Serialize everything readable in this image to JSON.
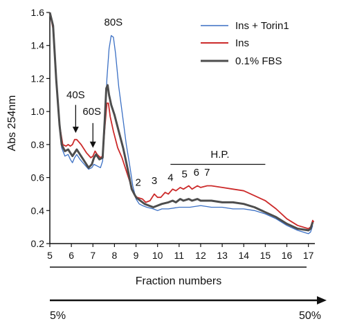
{
  "chart_data": {
    "type": "line",
    "ylabel": "Abs 254nm",
    "xlabel": "Fraction numbers",
    "xlim": [
      5,
      17.3
    ],
    "ylim": [
      0.2,
      1.6
    ],
    "x_ticks": [
      "5",
      "6",
      "7",
      "8",
      "9",
      "10",
      "11",
      "12",
      "13",
      "14",
      "15",
      "16",
      "17"
    ],
    "y_ticks": [
      "0.2",
      "0.4",
      "0.6",
      "0.8",
      "1.0",
      "1.2",
      "1.4",
      "1.6"
    ],
    "legend_position": "top-right",
    "series": [
      {
        "name": "Ins + Torin1",
        "color": "#3a6fc4",
        "points": [
          [
            5.0,
            1.6
          ],
          [
            5.15,
            1.52
          ],
          [
            5.3,
            1.2
          ],
          [
            5.45,
            0.9
          ],
          [
            5.55,
            0.78
          ],
          [
            5.7,
            0.73
          ],
          [
            5.85,
            0.74
          ],
          [
            5.95,
            0.71
          ],
          [
            6.05,
            0.69
          ],
          [
            6.15,
            0.72
          ],
          [
            6.25,
            0.74
          ],
          [
            6.4,
            0.71
          ],
          [
            6.6,
            0.68
          ],
          [
            6.8,
            0.65
          ],
          [
            6.95,
            0.66
          ],
          [
            7.05,
            0.68
          ],
          [
            7.2,
            0.67
          ],
          [
            7.35,
            0.66
          ],
          [
            7.45,
            0.7
          ],
          [
            7.55,
            0.9
          ],
          [
            7.65,
            1.2
          ],
          [
            7.75,
            1.38
          ],
          [
            7.85,
            1.46
          ],
          [
            7.95,
            1.45
          ],
          [
            8.05,
            1.35
          ],
          [
            8.2,
            1.15
          ],
          [
            8.4,
            0.95
          ],
          [
            8.55,
            0.8
          ],
          [
            8.7,
            0.68
          ],
          [
            8.85,
            0.55
          ],
          [
            9.0,
            0.47
          ],
          [
            9.15,
            0.44
          ],
          [
            9.3,
            0.43
          ],
          [
            9.5,
            0.42
          ],
          [
            9.8,
            0.41
          ],
          [
            10.0,
            0.4
          ],
          [
            10.2,
            0.41
          ],
          [
            10.5,
            0.41
          ],
          [
            11.0,
            0.42
          ],
          [
            11.5,
            0.42
          ],
          [
            12.0,
            0.43
          ],
          [
            12.5,
            0.42
          ],
          [
            13.0,
            0.42
          ],
          [
            13.5,
            0.41
          ],
          [
            14.0,
            0.41
          ],
          [
            14.5,
            0.4
          ],
          [
            15.0,
            0.38
          ],
          [
            15.5,
            0.35
          ],
          [
            16.0,
            0.31
          ],
          [
            16.5,
            0.28
          ],
          [
            17.0,
            0.26
          ],
          [
            17.1,
            0.27
          ],
          [
            17.2,
            0.31
          ]
        ]
      },
      {
        "name": "Ins",
        "color": "#cc2a2a",
        "points": [
          [
            5.0,
            1.6
          ],
          [
            5.15,
            1.5
          ],
          [
            5.3,
            1.18
          ],
          [
            5.45,
            0.92
          ],
          [
            5.6,
            0.8
          ],
          [
            5.75,
            0.79
          ],
          [
            5.85,
            0.8
          ],
          [
            5.95,
            0.79
          ],
          [
            6.05,
            0.8
          ],
          [
            6.15,
            0.83
          ],
          [
            6.25,
            0.83
          ],
          [
            6.45,
            0.8
          ],
          [
            6.7,
            0.75
          ],
          [
            6.9,
            0.72
          ],
          [
            7.0,
            0.73
          ],
          [
            7.1,
            0.76
          ],
          [
            7.2,
            0.74
          ],
          [
            7.35,
            0.72
          ],
          [
            7.45,
            0.73
          ],
          [
            7.55,
            0.9
          ],
          [
            7.65,
            1.05
          ],
          [
            7.72,
            1.05
          ],
          [
            7.8,
            0.97
          ],
          [
            7.95,
            0.88
          ],
          [
            8.15,
            0.78
          ],
          [
            8.35,
            0.72
          ],
          [
            8.55,
            0.64
          ],
          [
            8.75,
            0.56
          ],
          [
            8.9,
            0.5
          ],
          [
            9.05,
            0.48
          ],
          [
            9.3,
            0.47
          ],
          [
            9.45,
            0.45
          ],
          [
            9.65,
            0.46
          ],
          [
            9.85,
            0.5
          ],
          [
            10.0,
            0.48
          ],
          [
            10.15,
            0.48
          ],
          [
            10.35,
            0.51
          ],
          [
            10.5,
            0.5
          ],
          [
            10.7,
            0.53
          ],
          [
            10.85,
            0.52
          ],
          [
            11.05,
            0.54
          ],
          [
            11.2,
            0.53
          ],
          [
            11.45,
            0.55
          ],
          [
            11.6,
            0.53
          ],
          [
            11.85,
            0.55
          ],
          [
            12.0,
            0.54
          ],
          [
            12.3,
            0.55
          ],
          [
            12.5,
            0.55
          ],
          [
            13.0,
            0.54
          ],
          [
            13.5,
            0.53
          ],
          [
            14.0,
            0.52
          ],
          [
            14.5,
            0.49
          ],
          [
            15.0,
            0.46
          ],
          [
            15.5,
            0.41
          ],
          [
            16.0,
            0.35
          ],
          [
            16.5,
            0.31
          ],
          [
            17.0,
            0.29
          ],
          [
            17.1,
            0.3
          ],
          [
            17.2,
            0.34
          ],
          [
            17.25,
            0.33
          ]
        ]
      },
      {
        "name": "0.1% FBS",
        "color": "#4d4d4d",
        "points": [
          [
            5.0,
            1.6
          ],
          [
            5.15,
            1.52
          ],
          [
            5.3,
            1.19
          ],
          [
            5.45,
            0.92
          ],
          [
            5.55,
            0.8
          ],
          [
            5.7,
            0.76
          ],
          [
            5.85,
            0.77
          ],
          [
            5.95,
            0.75
          ],
          [
            6.05,
            0.73
          ],
          [
            6.15,
            0.75
          ],
          [
            6.25,
            0.77
          ],
          [
            6.4,
            0.74
          ],
          [
            6.6,
            0.7
          ],
          [
            6.8,
            0.66
          ],
          [
            6.95,
            0.68
          ],
          [
            7.05,
            0.72
          ],
          [
            7.15,
            0.74
          ],
          [
            7.3,
            0.71
          ],
          [
            7.45,
            0.72
          ],
          [
            7.55,
            0.95
          ],
          [
            7.62,
            1.14
          ],
          [
            7.68,
            1.16
          ],
          [
            7.75,
            1.1
          ],
          [
            7.85,
            1.04
          ],
          [
            8.0,
            0.98
          ],
          [
            8.2,
            0.88
          ],
          [
            8.4,
            0.78
          ],
          [
            8.6,
            0.66
          ],
          [
            8.8,
            0.53
          ],
          [
            9.0,
            0.48
          ],
          [
            9.2,
            0.46
          ],
          [
            9.4,
            0.44
          ],
          [
            9.6,
            0.43
          ],
          [
            9.8,
            0.42
          ],
          [
            10.0,
            0.43
          ],
          [
            10.2,
            0.44
          ],
          [
            10.5,
            0.45
          ],
          [
            10.7,
            0.46
          ],
          [
            10.85,
            0.45
          ],
          [
            11.05,
            0.47
          ],
          [
            11.2,
            0.46
          ],
          [
            11.45,
            0.47
          ],
          [
            11.6,
            0.46
          ],
          [
            11.85,
            0.47
          ],
          [
            12.0,
            0.46
          ],
          [
            12.5,
            0.46
          ],
          [
            13.0,
            0.45
          ],
          [
            13.5,
            0.45
          ],
          [
            14.0,
            0.44
          ],
          [
            14.5,
            0.42
          ],
          [
            15.0,
            0.39
          ],
          [
            15.5,
            0.36
          ],
          [
            16.0,
            0.32
          ],
          [
            16.5,
            0.29
          ],
          [
            17.0,
            0.28
          ],
          [
            17.1,
            0.29
          ],
          [
            17.2,
            0.33
          ]
        ]
      }
    ],
    "annotations": [
      {
        "text": "80S",
        "x": 7.95,
        "y": 1.52
      },
      {
        "text": "40S",
        "x": 6.2,
        "y": 1.08,
        "arrow_from": [
          6.2,
          1.04
        ],
        "arrow_to": [
          6.2,
          0.87
        ]
      },
      {
        "text": "60S",
        "x": 6.95,
        "y": 0.98,
        "arrow_from": [
          7.0,
          0.93
        ],
        "arrow_to": [
          7.0,
          0.78
        ]
      },
      {
        "text": "2",
        "x": 9.1,
        "y": 0.55
      },
      {
        "text": "3",
        "x": 9.85,
        "y": 0.56
      },
      {
        "text": "4",
        "x": 10.6,
        "y": 0.58
      },
      {
        "text": "5",
        "x": 11.25,
        "y": 0.6
      },
      {
        "text": "6",
        "x": 11.8,
        "y": 0.61
      },
      {
        "text": "7",
        "x": 12.3,
        "y": 0.61
      },
      {
        "text": "H.P.",
        "x": 12.9,
        "y": 0.72,
        "line_from": 10.6,
        "line_to": 15.0,
        "line_y": 0.68
      }
    ],
    "gradient": {
      "start_label": "5%",
      "end_label": "50%"
    }
  }
}
